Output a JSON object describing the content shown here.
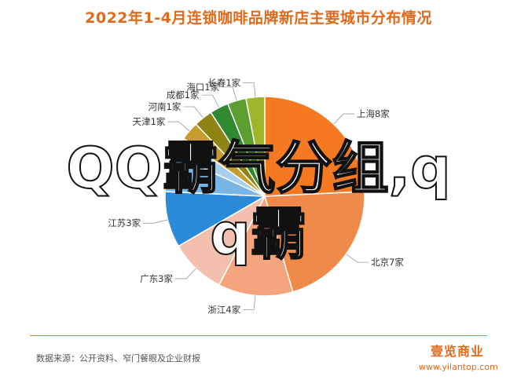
{
  "title": "2022年1-4月连锁咖啡品牌新店主要城市分布情况",
  "source": "数据来源：公开资料、窄门餐眼及企业财报",
  "logo": {
    "name": "壹览商业",
    "url": "www.yilantop.com"
  },
  "watermark": {
    "line1": "QQ霸气分组,q",
    "line2": "q霸"
  },
  "colors": {
    "title": "#E06A1B",
    "rule": "#ED7D31"
  },
  "chart_data": {
    "type": "pie",
    "title": "2022年1-4月连锁咖啡品牌新店主要城市分布情况",
    "unit": "家",
    "slices": [
      {
        "label": "上海8家",
        "city": "上海",
        "value": 8,
        "color": "#F47920"
      },
      {
        "label": "北京7家",
        "city": "北京",
        "value": 7,
        "color": "#F08A4B"
      },
      {
        "label": "浙江4家",
        "city": "浙江",
        "value": 4,
        "color": "#F4A57E"
      },
      {
        "label": "广东3家",
        "city": "广东",
        "value": 3,
        "color": "#F3BFAE"
      },
      {
        "label": "江苏3家",
        "city": "江苏",
        "value": 3,
        "color": "#2C8BD8"
      },
      {
        "label": "",
        "city": "",
        "value": 2,
        "color": "#79B6E5"
      },
      {
        "label": "",
        "city": "",
        "value": 1,
        "color": "#A8D0EE"
      },
      {
        "label": "天津1家",
        "city": "天津",
        "value": 1,
        "color": "#C89B2E"
      },
      {
        "label": "河南1家",
        "city": "河南",
        "value": 1,
        "color": "#8E8414"
      },
      {
        "label": "成都1家",
        "city": "成都",
        "value": 1,
        "color": "#2F8A2F"
      },
      {
        "label": "海口1家",
        "city": "海口",
        "value": 1,
        "color": "#5A9E2F"
      },
      {
        "label": "长春1家",
        "city": "长春",
        "value": 1,
        "color": "#9DB62A"
      }
    ]
  }
}
